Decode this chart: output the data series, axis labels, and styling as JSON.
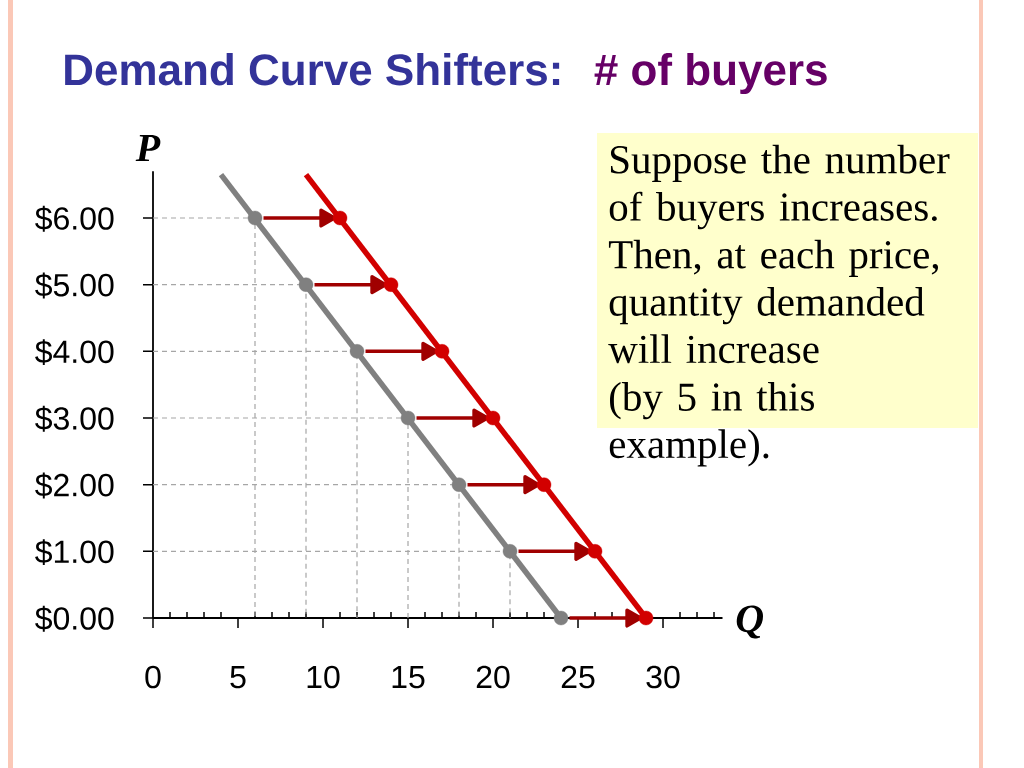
{
  "chart_data": {
    "type": "line",
    "title": "Demand Curve Shifters:",
    "subtitle": "# of buyers",
    "xlabel": "Q",
    "ylabel": "P",
    "annotations": [
      "Suppose the number of buyers increases.",
      "Then, at each price, quantity demanded will increase",
      "(by 5 in this example)."
    ],
    "xlim": [
      0,
      33.5
    ],
    "ylim": [
      0,
      6.7
    ],
    "xticks": [
      0,
      {
        "value": 1,
        "label": null
      },
      {
        "value": 2,
        "label": null
      },
      {
        "value": 3,
        "label": null
      },
      {
        "value": 4,
        "label": null
      },
      5,
      {
        "value": 6,
        "label": null
      },
      {
        "value": 7,
        "label": null
      },
      {
        "value": 8,
        "label": null
      },
      {
        "value": 9,
        "label": null
      },
      10,
      {
        "value": 11,
        "label": null
      },
      {
        "value": 12,
        "label": null
      },
      {
        "value": 13,
        "label": null
      },
      {
        "value": 14,
        "label": null
      },
      15,
      {
        "value": 16,
        "label": null
      },
      {
        "value": 17,
        "label": null
      },
      {
        "value": 18,
        "label": null
      },
      {
        "value": 19,
        "label": null
      },
      20,
      {
        "value": 21,
        "label": null
      },
      {
        "value": 22,
        "label": null
      },
      {
        "value": 23,
        "label": null
      },
      {
        "value": 24,
        "label": null
      },
      25,
      {
        "value": 26,
        "label": null
      },
      {
        "value": 27,
        "label": null
      },
      {
        "value": 28,
        "label": null
      },
      {
        "value": 29,
        "label": null
      },
      30,
      {
        "value": 31,
        "label": null
      },
      {
        "value": 32,
        "label": null
      },
      {
        "value": 33,
        "label": null
      }
    ],
    "yticks": [
      {
        "value": 0,
        "label": "$0.00"
      },
      {
        "value": 1,
        "label": "$1.00"
      },
      {
        "value": 2,
        "label": "$2.00"
      },
      {
        "value": 3,
        "label": "$3.00"
      },
      {
        "value": 4,
        "label": "$4.00"
      },
      {
        "value": 5,
        "label": "$5.00"
      },
      {
        "value": 6,
        "label": "$6.00"
      }
    ],
    "series": [
      {
        "color": "#a6a6a6",
        "line_style": "dashed",
        "x": [
          0,
          6,
          6,
          null,
          0,
          9,
          9,
          null,
          0,
          12,
          12,
          null,
          0,
          15,
          15,
          null,
          0,
          18,
          18,
          null,
          0,
          21,
          21
        ],
        "values": [
          6,
          6,
          0,
          null,
          5,
          5,
          0,
          null,
          4,
          4,
          0,
          null,
          3,
          3,
          0,
          null,
          2,
          2,
          0,
          null,
          1,
          1,
          0
        ]
      },
      {
        "color": "#808080",
        "x": [
          4,
          24
        ],
        "values": [
          6.65,
          0
        ]
      },
      {
        "type": "scatter",
        "color": "#808080",
        "marker": "circle",
        "x": [
          6,
          9,
          12,
          15,
          18,
          21,
          24
        ],
        "values": [
          6,
          5,
          4,
          3,
          2,
          1,
          0
        ]
      },
      {
        "color": "#a00000",
        "line_style": "solid",
        "marker": "triangle",
        "x": [
          6.5,
          10.15,
          null,
          9.5,
          13.15,
          null,
          12.5,
          16.15,
          null,
          15.5,
          19.15,
          null,
          18.5,
          22.15,
          null,
          21.5,
          25.15,
          null,
          24.5,
          28.15
        ],
        "values": [
          6,
          6,
          null,
          5,
          5,
          null,
          4,
          4,
          null,
          3,
          3,
          null,
          2,
          2,
          null,
          1,
          1,
          null,
          0,
          0
        ]
      },
      {
        "color": "#d20000",
        "x": [
          9,
          29
        ],
        "values": [
          6.65,
          0
        ]
      },
      {
        "type": "scatter",
        "color": "#d20000",
        "marker": "circle",
        "x": [
          11,
          14,
          17,
          20,
          23,
          26,
          29
        ],
        "values": [
          6,
          5,
          4,
          3,
          2,
          1,
          0
        ]
      }
    ]
  }
}
